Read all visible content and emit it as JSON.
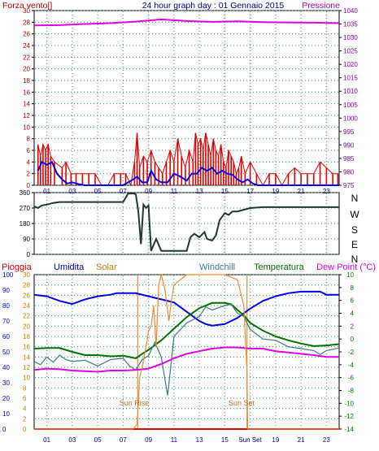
{
  "header": {
    "left": "Forza vento[]",
    "center": "24 hour graph day : 01 Gennaio 2015",
    "right": "Pressione"
  },
  "colors": {
    "red": "#e00000",
    "blue": "#0000e0",
    "magenta": "#e000e0",
    "navy": "#000080",
    "orange": "#ee8833",
    "olive": "#c08000",
    "dark_green": "#007000",
    "steel": "#3a7a80",
    "grid": "#2a8a8a",
    "panel": "#ffffff",
    "axis_left": "#b00000",
    "axis_right": "#8000a0"
  },
  "panel3_legend": {
    "pioggia": "Pioggia",
    "umidita": "Umidita",
    "solar": "Solar",
    "windchill": "Windchill",
    "temperatura": "Temperatura",
    "dewpoint": "Dew Point (°C)"
  },
  "compass": [
    "N",
    "W",
    "S",
    "E",
    "N"
  ],
  "annotations": {
    "sunrise": "Sun Rise",
    "sunset": "Sun Set"
  },
  "x_ticks_top": [
    "01",
    "03",
    "05",
    "07",
    "09",
    "11",
    "13",
    "15",
    "17",
    "19",
    "21",
    "23"
  ],
  "x_ticks_bottom": [
    "01",
    "03",
    "05",
    "07",
    "09",
    "11",
    "13",
    "15",
    "Sun Set",
    "19",
    "21",
    "23"
  ],
  "chart_data": [
    {
      "type": "line",
      "title": "24 hour graph day : 01 Gennaio 2015",
      "y_left": {
        "label": "Forza vento[]",
        "min": 0,
        "max": 30,
        "ticks": [
          0,
          2,
          4,
          6,
          8,
          10,
          12,
          14,
          16,
          18,
          20,
          22,
          24,
          26,
          28,
          30
        ]
      },
      "y_right": {
        "label": "Pressione",
        "min": 975,
        "max": 1040,
        "ticks": [
          975,
          980,
          985,
          990,
          995,
          1000,
          1005,
          1010,
          1015,
          1020,
          1025,
          1030,
          1035,
          1040
        ]
      },
      "x_range": [
        0,
        24
      ],
      "x_ticks": [
        "01",
        "03",
        "05",
        "07",
        "09",
        "11",
        "13",
        "15",
        "17",
        "19",
        "21",
        "23"
      ],
      "series": [
        {
          "name": "Pressione",
          "axis": "right",
          "color": "#e000e0",
          "x": [
            0,
            2,
            4,
            6,
            8,
            10,
            12,
            14,
            16,
            18,
            20,
            22,
            24
          ],
          "y": [
            1034.5,
            1034.6,
            1035.0,
            1035.3,
            1035.9,
            1036.7,
            1036.1,
            1035.8,
            1036.0,
            1035.7,
            1035.6,
            1035.5,
            1035.3
          ]
        },
        {
          "axis": "left",
          "color": "#e00000",
          "style": "bars",
          "x": [
            0.3,
            0.5,
            0.7,
            0.9,
            1.1,
            1.3,
            1.6,
            2.2,
            2.5,
            2.9,
            3.3,
            3.8,
            4.3,
            4.8,
            5.3,
            5.8,
            6.3,
            6.8,
            7.2,
            7.6,
            7.9,
            8.1,
            8.3,
            8.6,
            8.9,
            9.2,
            9.5,
            9.8,
            10.1,
            10.4,
            10.7,
            11.0,
            11.3,
            11.6,
            11.9,
            12.2,
            12.5,
            12.7,
            12.9,
            13.1,
            13.3,
            13.5,
            13.7,
            13.9,
            14.1,
            14.3,
            14.5,
            14.7,
            14.9,
            15.1,
            15.3,
            15.5,
            15.7,
            15.9,
            16.1,
            16.3,
            16.6,
            17.0,
            17.5,
            18.0,
            18.5,
            19.0,
            19.5,
            20.0,
            20.5,
            21.0,
            21.5,
            22.0,
            22.5,
            23.0,
            23.5,
            23.9
          ],
          "y": [
            7,
            5,
            7,
            6,
            7,
            5,
            4,
            3,
            4,
            2,
            2,
            2,
            2,
            2,
            0,
            0,
            2,
            2,
            2,
            0,
            4,
            9,
            3,
            5,
            4,
            6,
            4,
            3,
            2,
            4,
            6,
            4,
            8,
            5,
            3,
            6,
            4,
            9,
            7,
            8,
            6,
            9,
            7,
            5,
            8,
            6,
            5,
            7,
            4,
            3,
            6,
            5,
            4,
            2,
            3,
            5,
            2,
            4,
            2,
            0,
            2,
            2,
            0,
            2,
            3,
            2,
            2,
            2,
            4,
            3,
            2,
            2
          ]
        },
        {
          "axis": "left",
          "color": "#0000e0",
          "x": [
            0.3,
            0.6,
            1.0,
            1.4,
            1.8,
            2.2,
            2.6,
            3.0,
            3.5,
            4.0,
            5.0,
            6.0,
            7.0,
            7.4,
            7.8,
            8.1,
            8.5,
            8.9,
            9.2,
            9.6,
            10.0,
            10.5,
            11.0,
            11.5,
            12.0,
            12.4,
            12.8,
            13.2,
            13.6,
            14.0,
            14.4,
            14.8,
            15.2,
            15.6,
            16.0,
            16.4,
            16.8,
            17.2,
            17.6,
            18.0,
            19.0,
            20.0,
            21.0,
            22.0,
            23.0,
            24.0
          ],
          "y": [
            2.5,
            4,
            3.5,
            4,
            2,
            1,
            0.3,
            0.5,
            0.2,
            0,
            0,
            0,
            0,
            0.5,
            1,
            1.5,
            0.5,
            0.5,
            2.5,
            1,
            0.5,
            0.5,
            2,
            1.5,
            0.8,
            2,
            2,
            3,
            2.5,
            3,
            2,
            2.5,
            2,
            1.8,
            1,
            0.5,
            1,
            0.3,
            0,
            0,
            0,
            0,
            0,
            0,
            0,
            0
          ]
        }
      ]
    },
    {
      "type": "line",
      "y_left": {
        "min": 0,
        "max": 360,
        "ticks": [
          0,
          90,
          180,
          270,
          360
        ]
      },
      "y_right_labels": [
        "N",
        "W",
        "S",
        "E",
        "N"
      ],
      "x_range": [
        0,
        24
      ],
      "series": [
        {
          "color": "#203828",
          "x": [
            0,
            0.3,
            0.6,
            1.0,
            1.5,
            2.0,
            3.0,
            4.0,
            5.0,
            6.0,
            7.0,
            7.4,
            7.6,
            7.8,
            8.0,
            8.2,
            8.4,
            8.6,
            8.8,
            9.0,
            9.2,
            9.6,
            10.0,
            11.0,
            12.0,
            12.3,
            12.6,
            13.0,
            13.4,
            13.6,
            14.0,
            14.3,
            14.6,
            15.0,
            15.3,
            15.6,
            16.0,
            17.0,
            18.0,
            19.0,
            20.0,
            21.0,
            22.0,
            23.0,
            24.0
          ],
          "y": [
            280,
            270,
            285,
            290,
            300,
            305,
            305,
            305,
            305,
            305,
            305,
            355,
            355,
            355,
            350,
            250,
            60,
            290,
            270,
            285,
            20,
            90,
            20,
            20,
            20,
            100,
            120,
            100,
            130,
            90,
            80,
            110,
            200,
            240,
            230,
            250,
            250,
            270,
            275,
            275,
            275,
            275,
            275,
            275,
            275
          ]
        }
      ]
    },
    {
      "type": "line",
      "y_left_outer": {
        "label": "Pioggia",
        "min": 0,
        "max": 30,
        "ticks": [
          0,
          2,
          4,
          6,
          8,
          10,
          12,
          14,
          16,
          18,
          20,
          22,
          24,
          26,
          28,
          30
        ]
      },
      "y_left_inner": {
        "label": "Umidita",
        "min": 0,
        "max": 100,
        "ticks": [
          0,
          10,
          20,
          30,
          40,
          50,
          60,
          70,
          80,
          90,
          100
        ]
      },
      "y_right": {
        "label": "Dew Point (°C)",
        "min": -14,
        "max": 10,
        "ticks": [
          -14,
          -12,
          -10,
          -8,
          -6,
          -4,
          -2,
          0,
          2,
          4,
          6,
          8,
          10
        ]
      },
      "x_range": [
        0,
        24
      ],
      "annotations": [
        {
          "text": "Sun Rise",
          "x": 8.15
        },
        {
          "text": "Sun Set",
          "x": 16.75
        }
      ],
      "series": [
        {
          "name": "Pioggia",
          "color": "#e00000",
          "x": [
            0,
            24
          ],
          "y": [
            0,
            0
          ]
        },
        {
          "name": "Umidita",
          "axis": "inner",
          "color": "#0000e0",
          "x": [
            0,
            1,
            2,
            3,
            4,
            5,
            6,
            6.5,
            7,
            8,
            9,
            10,
            11,
            12,
            13,
            13.5,
            14,
            15,
            15.5,
            16,
            17,
            18,
            19,
            20,
            21,
            22,
            22.5,
            23,
            24
          ],
          "y": [
            87,
            86,
            83,
            81,
            84,
            86,
            87,
            88,
            88,
            88,
            86,
            84,
            82,
            76,
            70,
            68,
            67,
            68,
            70,
            72,
            78,
            83,
            86,
            88,
            89,
            89,
            89,
            87,
            87
          ]
        },
        {
          "name": "Temperatura",
          "axis": "right",
          "color": "#007000",
          "x": [
            0,
            1,
            2,
            3,
            4,
            5,
            6,
            7,
            8,
            8.5,
            9,
            10,
            11,
            12,
            13,
            14,
            15,
            15.5,
            16,
            16.5,
            17,
            18,
            19,
            20,
            21,
            22,
            23,
            24
          ],
          "y": [
            -1.5,
            -1.4,
            -1.4,
            -2.0,
            -2.5,
            -2.5,
            -2.7,
            -2.6,
            -3.0,
            -2.3,
            -1.7,
            -0.2,
            1.6,
            3.4,
            4.8,
            5.6,
            5.6,
            5.4,
            4.5,
            3.7,
            2.5,
            1.3,
            0.4,
            -0.2,
            -0.7,
            -1.1,
            -1.0,
            -0.8
          ]
        },
        {
          "name": "Windchill",
          "axis": "right",
          "color": "#3a7a80",
          "x": [
            0,
            0.5,
            1,
            1.5,
            2,
            2.5,
            3,
            4,
            5,
            6,
            7,
            7.5,
            8,
            8.5,
            9,
            9.5,
            10,
            10.5,
            11,
            12,
            13,
            13.5,
            14,
            15,
            15.5,
            16,
            16.5,
            17,
            18,
            19,
            20,
            21,
            22,
            22.5,
            23,
            24
          ],
          "y": [
            -3.5,
            -4,
            -2.8,
            -3.6,
            -2.5,
            -3.2,
            -3.5,
            -3.3,
            -4.2,
            -3.2,
            -3,
            -4.2,
            -4.8,
            -3.2,
            -2.6,
            -0.5,
            -2.8,
            -8.8,
            0.4,
            2.5,
            3.5,
            5,
            4.5,
            5.2,
            5.4,
            4,
            3.5,
            1.5,
            0,
            -0.2,
            -1.2,
            -1.5,
            -1.8,
            -2.4,
            -1.8,
            -1.4
          ]
        },
        {
          "name": "Dew Point (°C)",
          "axis": "right",
          "color": "#e000e0",
          "x": [
            0,
            1,
            2,
            3,
            4,
            5,
            6,
            7,
            8,
            9,
            10,
            11,
            12,
            13,
            14,
            15,
            16,
            17,
            18,
            19,
            20,
            21,
            22,
            23,
            24
          ],
          "y": [
            -4.8,
            -4.6,
            -4.7,
            -4.9,
            -5.0,
            -5.1,
            -4.9,
            -4.9,
            -4.8,
            -4.6,
            -3.9,
            -3.0,
            -2.3,
            -1.9,
            -1.5,
            -1.3,
            -1.3,
            -1.5,
            -1.5,
            -1.9,
            -2.1,
            -2.3,
            -2.5,
            -2.8,
            -2.8
          ]
        },
        {
          "name": "Solar",
          "axis": "outer",
          "color": "#ee8833",
          "x": [
            0,
            7.8,
            8.1,
            8.3,
            8.5,
            8.8,
            9.0,
            9.2,
            9.4,
            9.6,
            9.8,
            10.0,
            10.3,
            10.6,
            10.8,
            11.0,
            11.5,
            12,
            13,
            14,
            15,
            16,
            16.5,
            16.75,
            16.8,
            24
          ],
          "y": [
            0,
            0,
            1,
            10,
            12,
            16,
            19,
            20,
            24,
            16,
            28,
            30,
            27,
            21,
            25,
            28,
            29,
            30,
            30,
            30,
            30,
            29,
            24,
            11,
            0,
            0
          ]
        }
      ]
    }
  ]
}
